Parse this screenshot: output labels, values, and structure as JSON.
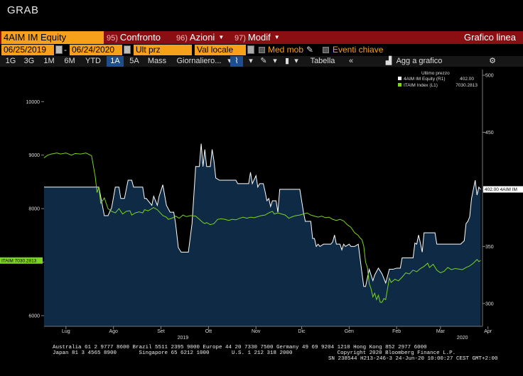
{
  "window_title": "GRAB",
  "toolbar": {
    "security": "4AIM IM Equity",
    "compare_num": "95)",
    "compare_label": "Confronto",
    "actions_num": "96)",
    "actions_label": "Azioni",
    "modify_num": "97)",
    "modify_label": "Modif",
    "chart_type": "Grafico linea"
  },
  "settings": {
    "start_date": "06/25/2019",
    "end_date": "06/24/2020",
    "price_field": "Ult prz",
    "currency_field": "Val locale",
    "moving_avg_label": "Med mob",
    "key_events_label": "Eventi chiave"
  },
  "periods": [
    "1G",
    "3G",
    "1M",
    "6M",
    "YTD",
    "1A",
    "5A",
    "Mass"
  ],
  "active_period": "1A",
  "frequency": "Giornaliero...",
  "table_label": "Tabella",
  "add_to_chart_label": "Agg a grafico",
  "colors": {
    "accent": "#f7a11a",
    "commandbar": "#8a0f12",
    "series_equity": "#ffffff",
    "series_index": "#7bd322",
    "fill": "#0f2a44"
  },
  "chart_data": {
    "type": "line",
    "legend_title": "Ultimo prezzo",
    "series": [
      {
        "name": "4AIM IM Equity (R1)",
        "last": "402.00",
        "axis": "right",
        "values": [
          [
            0,
            402
          ],
          [
            40,
            402
          ],
          [
            48,
            402
          ],
          [
            54,
            402
          ],
          [
            60,
            402
          ],
          [
            66,
            377
          ],
          [
            70,
            377
          ],
          [
            74,
            384
          ],
          [
            78,
            402
          ],
          [
            82,
            402
          ],
          [
            84,
            392
          ],
          [
            88,
            392
          ],
          [
            90,
            400
          ],
          [
            92,
            408
          ],
          [
            96,
            408
          ],
          [
            98,
            402
          ],
          [
            100,
            402
          ],
          [
            104,
            402
          ],
          [
            108,
            402
          ],
          [
            110,
            392
          ],
          [
            112,
            392
          ],
          [
            114,
            390
          ],
          [
            118,
            386
          ],
          [
            120,
            394
          ],
          [
            124,
            386
          ],
          [
            126,
            394
          ],
          [
            130,
            404
          ],
          [
            134,
            386
          ],
          [
            138,
            380
          ],
          [
            142,
            380
          ],
          [
            144,
            370
          ],
          [
            147,
            349
          ],
          [
            150,
            345
          ],
          [
            154,
            345
          ],
          [
            158,
            345
          ],
          [
            162,
            370
          ],
          [
            166,
            420
          ],
          [
            170,
            420
          ],
          [
            172,
            440
          ],
          [
            174,
            420
          ],
          [
            176,
            435
          ],
          [
            178,
            420
          ],
          [
            182,
            420
          ],
          [
            184,
            435
          ],
          [
            186,
            425
          ],
          [
            188,
            410
          ],
          [
            192,
            408
          ],
          [
            196,
            408
          ],
          [
            200,
            408
          ],
          [
            210,
            408
          ],
          [
            212,
            405
          ],
          [
            216,
            405
          ],
          [
            220,
            405
          ],
          [
            224,
            405
          ],
          [
            226,
            415
          ],
          [
            228,
            405
          ],
          [
            232,
            412
          ],
          [
            234,
            402
          ],
          [
            236,
            405
          ],
          [
            240,
            405
          ],
          [
            242,
            398
          ],
          [
            244,
            390
          ],
          [
            246,
            392
          ],
          [
            248,
            385
          ],
          [
            250,
            390
          ],
          [
            254,
            390
          ],
          [
            256,
            380
          ],
          [
            258,
            400
          ],
          [
            260,
            400
          ],
          [
            270,
            400
          ],
          [
            280,
            400
          ],
          [
            282,
            390
          ],
          [
            284,
            380
          ],
          [
            286,
            372
          ],
          [
            288,
            372
          ],
          [
            292,
            372
          ],
          [
            294,
            357
          ],
          [
            296,
            357
          ],
          [
            298,
            350
          ],
          [
            300,
            352
          ],
          [
            302,
            350
          ],
          [
            306,
            352
          ],
          [
            310,
            352
          ],
          [
            312,
            352
          ],
          [
            314,
            352
          ],
          [
            316,
            354
          ],
          [
            318,
            360
          ],
          [
            320,
            352
          ],
          [
            324,
            352
          ],
          [
            326,
            347
          ],
          [
            328,
            352
          ],
          [
            330,
            350
          ],
          [
            334,
            352
          ],
          [
            336,
            350
          ],
          [
            340,
            350
          ],
          [
            344,
            352
          ],
          [
            348,
            327
          ],
          [
            350,
            315
          ],
          [
            352,
            315
          ],
          [
            356,
            330
          ],
          [
            360,
            320
          ],
          [
            362,
            325
          ],
          [
            366,
            331
          ],
          [
            370,
            326
          ],
          [
            374,
            318
          ],
          [
            378,
            330
          ],
          [
            382,
            330
          ],
          [
            386,
            331
          ],
          [
            390,
            331
          ],
          [
            392,
            340
          ],
          [
            400,
            340
          ],
          [
            404,
            340
          ],
          [
            406,
            353
          ],
          [
            408,
            352
          ],
          [
            410,
            360
          ],
          [
            412,
            353
          ],
          [
            414,
            345
          ],
          [
            416,
            362
          ],
          [
            420,
            362
          ],
          [
            424,
            362
          ],
          [
            428,
            362
          ],
          [
            430,
            352
          ],
          [
            434,
            352
          ],
          [
            436,
            352
          ],
          [
            440,
            352
          ],
          [
            450,
            352
          ],
          [
            452,
            352
          ],
          [
            456,
            352
          ],
          [
            460,
            355
          ],
          [
            462,
            370
          ],
          [
            464,
            372
          ],
          [
            466,
            376
          ],
          [
            468,
            392
          ],
          [
            470,
            400
          ],
          [
            472,
            408
          ],
          [
            474,
            395
          ],
          [
            476,
            402
          ],
          [
            478,
            400
          ]
        ]
      },
      {
        "name": "ITAIM Index (L1)",
        "last": "7030.2813",
        "axis": "left",
        "values": [
          [
            0,
            8950
          ],
          [
            4,
            9000
          ],
          [
            8,
            9020
          ],
          [
            14,
            9040
          ],
          [
            18,
            9020
          ],
          [
            24,
            9040
          ],
          [
            30,
            9000
          ],
          [
            34,
            9030
          ],
          [
            40,
            9020
          ],
          [
            46,
            9040
          ],
          [
            52,
            8990
          ],
          [
            56,
            8600
          ],
          [
            58,
            8300
          ],
          [
            60,
            8400
          ],
          [
            62,
            8100
          ],
          [
            64,
            8150
          ],
          [
            66,
            8200
          ],
          [
            70,
            8000
          ],
          [
            74,
            7950
          ],
          [
            78,
            7920
          ],
          [
            82,
            8000
          ],
          [
            86,
            7900
          ],
          [
            90,
            7950
          ],
          [
            94,
            7960
          ],
          [
            96,
            7880
          ],
          [
            100,
            7920
          ],
          [
            104,
            7940
          ],
          [
            108,
            7920
          ],
          [
            110,
            7980
          ],
          [
            114,
            7960
          ],
          [
            118,
            8000
          ],
          [
            120,
            8020
          ],
          [
            124,
            7980
          ],
          [
            130,
            7870
          ],
          [
            134,
            7840
          ],
          [
            136,
            7800
          ],
          [
            140,
            7820
          ],
          [
            144,
            7860
          ],
          [
            148,
            7820
          ],
          [
            152,
            7880
          ],
          [
            156,
            7850
          ],
          [
            160,
            7870
          ],
          [
            166,
            7860
          ],
          [
            170,
            7800
          ],
          [
            174,
            7740
          ],
          [
            176,
            7720
          ],
          [
            178,
            7740
          ],
          [
            182,
            7700
          ],
          [
            186,
            7720
          ],
          [
            190,
            7800
          ],
          [
            194,
            7810
          ],
          [
            198,
            7800
          ],
          [
            202,
            7780
          ],
          [
            206,
            7800
          ],
          [
            210,
            7790
          ],
          [
            214,
            7820
          ],
          [
            218,
            7840
          ],
          [
            222,
            7820
          ],
          [
            226,
            7840
          ],
          [
            230,
            7830
          ],
          [
            234,
            7850
          ],
          [
            238,
            7870
          ],
          [
            242,
            7880
          ],
          [
            246,
            7920
          ],
          [
            250,
            7950
          ],
          [
            252,
            7900
          ],
          [
            256,
            7920
          ],
          [
            260,
            7900
          ],
          [
            264,
            7880
          ],
          [
            268,
            7820
          ],
          [
            272,
            7850
          ],
          [
            276,
            7870
          ],
          [
            280,
            7880
          ],
          [
            284,
            7900
          ],
          [
            288,
            7920
          ],
          [
            292,
            7880
          ],
          [
            296,
            7860
          ],
          [
            300,
            7840
          ],
          [
            304,
            7860
          ],
          [
            308,
            7830
          ],
          [
            312,
            7840
          ],
          [
            316,
            7800
          ],
          [
            320,
            7780
          ],
          [
            324,
            7800
          ],
          [
            328,
            7770
          ],
          [
            332,
            7700
          ],
          [
            336,
            7650
          ],
          [
            340,
            7550
          ],
          [
            344,
            7500
          ],
          [
            346,
            7450
          ],
          [
            348,
            7420
          ],
          [
            350,
            7300
          ],
          [
            352,
            7000
          ],
          [
            354,
            6900
          ],
          [
            356,
            6600
          ],
          [
            358,
            6500
          ],
          [
            360,
            6350
          ],
          [
            362,
            6420
          ],
          [
            364,
            6300
          ],
          [
            366,
            6380
          ],
          [
            368,
            6250
          ],
          [
            370,
            6250
          ],
          [
            372,
            6320
          ],
          [
            374,
            6300
          ],
          [
            376,
            6500
          ],
          [
            378,
            6700
          ],
          [
            380,
            6620
          ],
          [
            384,
            6680
          ],
          [
            388,
            6650
          ],
          [
            392,
            6720
          ],
          [
            396,
            6800
          ],
          [
            400,
            6780
          ],
          [
            404,
            6850
          ],
          [
            408,
            6820
          ],
          [
            412,
            6880
          ],
          [
            416,
            6920
          ],
          [
            420,
            6980
          ],
          [
            422,
            6900
          ],
          [
            426,
            6960
          ],
          [
            430,
            6850
          ],
          [
            434,
            6800
          ],
          [
            438,
            6830
          ],
          [
            442,
            6900
          ],
          [
            446,
            6860
          ],
          [
            450,
            6880
          ],
          [
            454,
            6870
          ],
          [
            458,
            6860
          ],
          [
            462,
            6900
          ],
          [
            466,
            6930
          ],
          [
            470,
            6980
          ],
          [
            474,
            7050
          ],
          [
            476,
            7010
          ],
          [
            478,
            7030
          ]
        ]
      }
    ],
    "x_labels": [
      [
        "Lug",
        24
      ],
      [
        "Ago",
        76
      ],
      [
        "Set",
        128
      ],
      [
        "Ott",
        180
      ],
      [
        "Nov",
        232
      ],
      [
        "Dic",
        282
      ],
      [
        "Gen",
        334
      ],
      [
        "Feb",
        386
      ],
      [
        "Mar",
        434
      ],
      [
        "Apr",
        486
      ],
      [
        "Mag",
        536
      ],
      [
        "Giu",
        586
      ]
    ],
    "year_labels": [
      [
        "2019",
        152
      ],
      [
        "2020",
        458
      ]
    ],
    "left_axis": {
      "ticks": [
        6000,
        7000,
        8000,
        9000,
        10000
      ],
      "labels": [
        "6000",
        "",
        "8000",
        "9000",
        "10000"
      ],
      "range": [
        5800,
        10600
      ]
    },
    "right_axis": {
      "ticks": [
        300,
        350,
        400,
        450,
        500
      ],
      "labels": [
        "300",
        "350",
        "400",
        "450",
        "500"
      ],
      "range": [
        280,
        505
      ]
    },
    "x_range": [
      0,
      480
    ],
    "left_flag": "ITAIM 7030.2813",
    "right_flag": "402.00 4AIM IM"
  },
  "footer": {
    "line1": "Australia 61 2 9777 8600 Brazil 5511 2395 9000 Europe 44 20 7330 7500 Germany 49 69 9204 1210 Hong Kong 852 2977 6000",
    "line2": "Japan 81 3 4565 8900       Singapore 65 6212 1000       U.S. 1 212 318 2000              Copyright 2020 Bloomberg Finance L.P.",
    "line3": "SN 238544 H213-246-3 24-Jun-20 10:00:27 CEST GMT+2:00"
  }
}
